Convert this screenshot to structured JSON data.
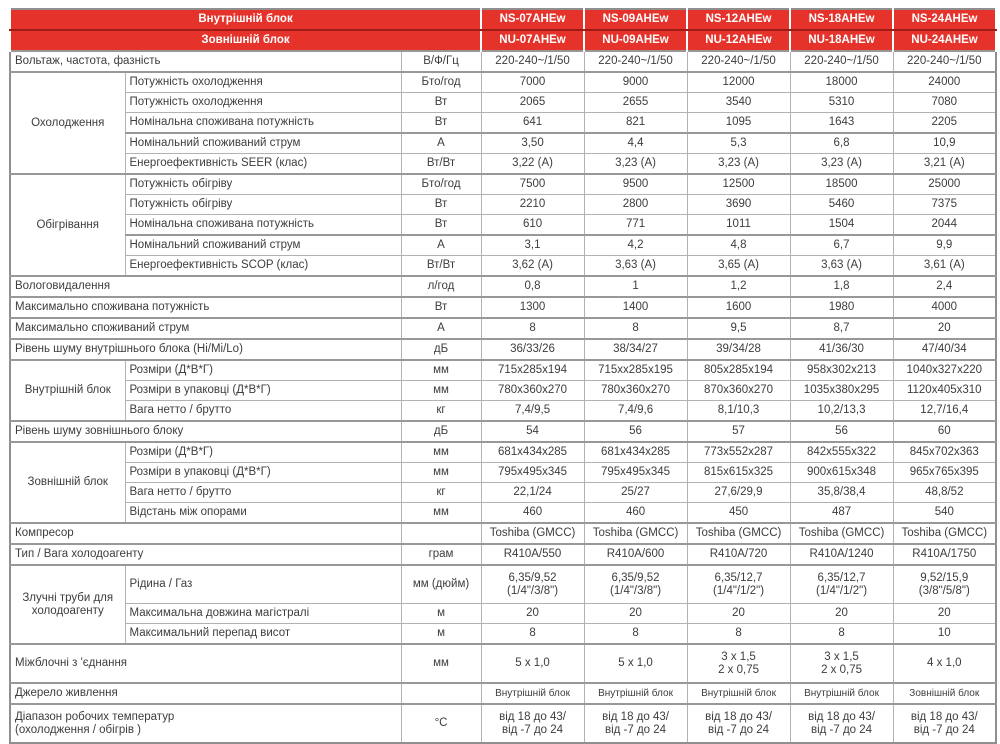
{
  "colors": {
    "header_red": "#e5322a",
    "header_divider_dark_red": "#9e1b16",
    "grid_line": "#b2b2b2",
    "section_line": "#989898",
    "body_text": "#3d3d3d",
    "header_text": "#ffffff"
  },
  "table": {
    "header": {
      "indoor_label": "Внутрішній  блок",
      "outdoor_label": "Зовнішній  блок",
      "indoor_models": [
        "NS-07AHEw",
        "NS-09AHEw",
        "NS-12AHEw",
        "NS-18AHEw",
        "NS-24AHEw"
      ],
      "outdoor_models": [
        "NU-07AHEw",
        "NU-09AHEw",
        "NU-12AHEw",
        "NU-18AHEw",
        "NU-24AHEw"
      ]
    },
    "rows": [
      {
        "label": "Вольтаж, частота, фазність",
        "unit": "В/Ф/Гц",
        "full": true,
        "sep": true,
        "values": [
          "220-240~/1/50",
          "220-240~/1/50",
          "220-240~/1/50",
          "220-240~/1/50",
          "220-240~/1/50"
        ]
      },
      {
        "group": {
          "label": "Охолодження",
          "span": 5
        },
        "sep": true,
        "label": "Потужність охолодження",
        "unit": "Бто/год",
        "values": [
          "7000",
          "9000",
          "12000",
          "18000",
          "24000"
        ]
      },
      {
        "label": "Потужність охолодження",
        "unit": "Вт",
        "values": [
          "2065",
          "2655",
          "3540",
          "5310",
          "7080"
        ]
      },
      {
        "label": "Номінальна споживана потужність",
        "unit": "Вт",
        "values": [
          "641",
          "821",
          "1095",
          "1643",
          "2205"
        ]
      },
      {
        "label": "Номінальний споживаний струм",
        "unit": "А",
        "sep": true,
        "values": [
          "3,50",
          "4,4",
          "5,3",
          "6,8",
          "10,9"
        ]
      },
      {
        "label": "Енергоефективність  SEER (клас)",
        "unit": "Вт/Вт",
        "values": [
          "3,22 (A)",
          "3,23 (A)",
          "3,23 (A)",
          "3,23 (A)",
          "3,21 (A)"
        ]
      },
      {
        "group": {
          "label": "Обігрівання",
          "span": 5
        },
        "sep": true,
        "label": "Потужність обігріву",
        "unit": "Бто/год",
        "values": [
          "7500",
          "9500",
          "12500",
          "18500",
          "25000"
        ]
      },
      {
        "label": "Потужність обігріву",
        "unit": "Вт",
        "values": [
          "2210",
          "2800",
          "3690",
          "5460",
          "7375"
        ]
      },
      {
        "label": "Номінальна споживана потужність",
        "unit": "Вт",
        "values": [
          "610",
          "771",
          "1011",
          "1504",
          "2044"
        ]
      },
      {
        "label": "Номінальний споживаний струм",
        "unit": "А",
        "sep": true,
        "values": [
          "3,1",
          "4,2",
          "4,8",
          "6,7",
          "9,9"
        ]
      },
      {
        "label": "Енергоефективність  SCOP (клас)",
        "unit": "Вт/Вт",
        "values": [
          "3,62 (A)",
          "3,63 (A)",
          "3,65 (A)",
          "3,63 (A)",
          "3,61 (A)"
        ]
      },
      {
        "label": "Вологовидалення",
        "unit": "л/год",
        "full": true,
        "sep": true,
        "values": [
          "0,8",
          "1",
          "1,2",
          "1,8",
          "2,4"
        ]
      },
      {
        "label": "Максимально споживана потужність",
        "unit": "Вт",
        "full": true,
        "sep": true,
        "values": [
          "1300",
          "1400",
          "1600",
          "1980",
          "4000"
        ]
      },
      {
        "label": "Максимально споживаний струм",
        "unit": "А",
        "full": true,
        "sep": true,
        "values": [
          "8",
          "8",
          "9,5",
          "8,7",
          "20"
        ]
      },
      {
        "label": "Рівень шуму внутрішнього блока  (Hi/Mi/Lo)",
        "unit": "дБ",
        "full": true,
        "sep": true,
        "values": [
          "36/33/26",
          "38/34/27",
          "39/34/28",
          "41/36/30",
          "47/40/34"
        ]
      },
      {
        "group": {
          "label": "Внутрішній блок",
          "span": 3
        },
        "sep": true,
        "label": "Розміри (Д*В*Г)",
        "unit": "мм",
        "values": [
          "715x285x194",
          "715xx285x195",
          "805x285x194",
          "958x302x213",
          "1040x327x220"
        ]
      },
      {
        "label": "Розміри в упаковці  (Д*В*Г)",
        "unit": "мм",
        "values": [
          "780x360x270",
          "780x360x270",
          "870x360x270",
          "1035x380x295",
          "1120x405x310"
        ]
      },
      {
        "label": "Вага нетто  / брутто",
        "unit": "кг",
        "values": [
          "7,4/9,5",
          "7,4/9,6",
          "8,1/10,3",
          "10,2/13,3",
          "12,7/16,4"
        ]
      },
      {
        "label": "Рівень шуму зовнішнього блоку",
        "unit": "дБ",
        "full": true,
        "sep": true,
        "values": [
          "54",
          "56",
          "57",
          "56",
          "60"
        ]
      },
      {
        "group": {
          "label": "Зовнішній блок",
          "span": 4
        },
        "sep": true,
        "label": "Розміри (Д*В*Г)",
        "unit": "мм",
        "values": [
          "681x434x285",
          "681x434x285",
          "773x552x287",
          "842x555x322",
          "845x702x363"
        ]
      },
      {
        "label": "Розміри в упаковці  (Д*В*Г)",
        "unit": "мм",
        "values": [
          "795x495x345",
          "795x495x345",
          "815x615x325",
          "900x615x348",
          "965x765x395"
        ]
      },
      {
        "label": "Вага нетто  / брутто",
        "unit": "кг",
        "values": [
          "22,1/24",
          "25/27",
          "27,6/29,9",
          "35,8/38,4",
          "48,8/52"
        ]
      },
      {
        "label": "Відстань між опорами",
        "unit": "мм",
        "values": [
          "460",
          "460",
          "450",
          "487",
          "540"
        ]
      },
      {
        "label": "Компресор",
        "unit": "",
        "full": true,
        "sep": true,
        "values": [
          "Toshiba (GMCC)",
          "Toshiba (GMCC)",
          "Toshiba (GMCC)",
          "Toshiba (GMCC)",
          "Toshiba (GMCC)"
        ]
      },
      {
        "label": "Тип / Вага холодоагенту",
        "unit": "грам",
        "full": true,
        "sep": true,
        "values": [
          "R410A/550",
          "R410A/600",
          "R410A/720",
          "R410A/1240",
          "R410A/1750"
        ]
      },
      {
        "group": {
          "label": "Злучні труби для холодоагенту",
          "span": 3
        },
        "sep": true,
        "tall": true,
        "label": "Рідина / Газ",
        "unit": "мм (дюйм)",
        "values": [
          "6,35/9,52\n(1/4\"/3/8\")",
          "6,35/9,52\n(1/4\"/3/8\")",
          "6,35/12,7\n(1/4\"/1/2\")",
          "6,35/12,7\n(1/4\"/1/2\")",
          "9,52/15,9\n(3/8\"/5/8\")"
        ]
      },
      {
        "label": "Максимальна довжина магістралі",
        "unit": "м",
        "values": [
          "20",
          "20",
          "20",
          "20",
          "20"
        ]
      },
      {
        "label": "Максимальний перепад висот",
        "unit": "м",
        "values": [
          "8",
          "8",
          "8",
          "8",
          "10"
        ]
      },
      {
        "label": "Міжблочні з 'єднання",
        "unit": "мм",
        "full": true,
        "sep": true,
        "tall": true,
        "values": [
          "5 x 1,0",
          "5 x 1,0",
          "3 x 1,5\n2 x 0,75",
          "3 x 1,5\n2 x 0,75",
          "4 x 1,0"
        ]
      },
      {
        "label": "Джерело живлення",
        "unit": "",
        "full": true,
        "sep": true,
        "small": true,
        "values": [
          "Внутрішній блок",
          "Внутрішній блок",
          "Внутрішній блок",
          "Внутрішній блок",
          "Зовнішній блок"
        ]
      },
      {
        "label": "Діапазон робочих температур\n(охолодження  / обігрів )",
        "unit": "°С",
        "full": true,
        "sep": true,
        "tall": true,
        "values": [
          "від 18 до 43/\nвід -7 до 24",
          "від 18 до 43/\nвід -7 до 24",
          "від 18 до 43/\nвід -7 до 24",
          "від 18 до 43/\nвід -7 до 24",
          "від 18 до 43/\nвід -7 до 24"
        ]
      }
    ]
  }
}
